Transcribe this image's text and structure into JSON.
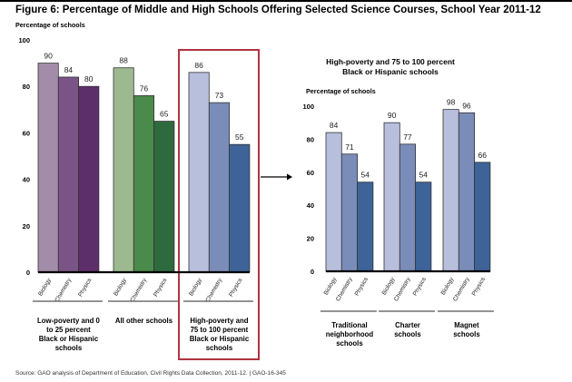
{
  "title": "Figure 6: Percentage of Middle and High Schools Offering Selected Science Courses, School Year 2011-12",
  "source": "Source: GAO analysis of Department of Education, Civil Rights Data Collection, 2011-12.  |  GAO-16-345",
  "chart_data": [
    {
      "type": "bar",
      "title": "",
      "ylabel": "Percentage of schools",
      "ylim": [
        0,
        100
      ],
      "yticks": [
        "0",
        "20",
        "40",
        "60",
        "80",
        "100"
      ],
      "categories": [
        "Biology",
        "Chemistry",
        "Physics"
      ],
      "groups": [
        {
          "name": "Low-poverty and 0 to 25 percent Black or Hispanic schools",
          "values": [
            90,
            84,
            80
          ],
          "colors": [
            "#a38ca9",
            "#7b5487",
            "#5c2e6a"
          ]
        },
        {
          "name": "All other schools",
          "values": [
            88,
            76,
            65
          ],
          "colors": [
            "#9db98f",
            "#4a8a4a",
            "#2e6a3d"
          ]
        },
        {
          "name": "High-poverty and 75 to 100 percent Black or Hispanic schools",
          "values": [
            86,
            73,
            55
          ],
          "colors": [
            "#b8bfdc",
            "#7a8cb8",
            "#3d6399"
          ],
          "highlighted": true
        }
      ]
    },
    {
      "type": "bar",
      "title": "High-poverty and 75 to 100 percent Black or Hispanic schools",
      "ylabel": "Percentage of schools",
      "ylim": [
        0,
        100
      ],
      "yticks": [
        "0",
        "20",
        "40",
        "60",
        "80",
        "100"
      ],
      "categories": [
        "Biology",
        "Chemistry",
        "Physics"
      ],
      "groups": [
        {
          "name": "Traditional neighborhood schools",
          "values": [
            84,
            71,
            54
          ],
          "colors": [
            "#b8bfdc",
            "#7a8cb8",
            "#3d6399"
          ]
        },
        {
          "name": "Charter schools",
          "values": [
            90,
            77,
            54
          ],
          "colors": [
            "#b8bfdc",
            "#7a8cb8",
            "#3d6399"
          ]
        },
        {
          "name": "Magnet schools",
          "values": [
            98,
            96,
            66
          ],
          "colors": [
            "#b8bfdc",
            "#7a8cb8",
            "#3d6399"
          ]
        }
      ]
    }
  ]
}
